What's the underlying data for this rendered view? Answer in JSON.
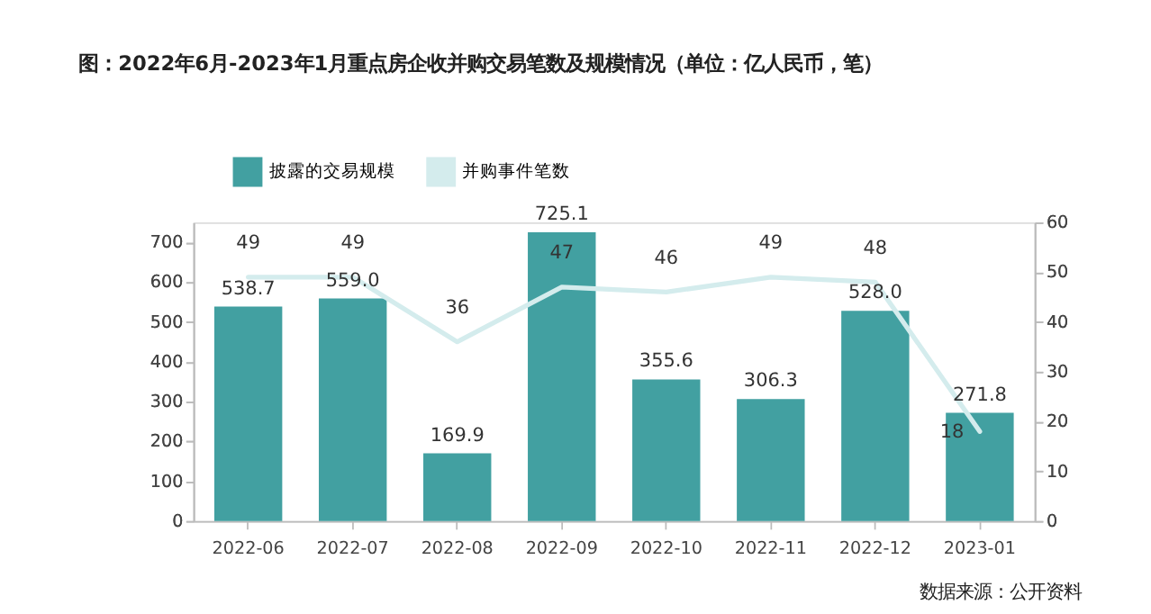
{
  "chart_data": {
    "type": "bar",
    "title": "图：2022年6月-2023年1月重点房企收并购交易笔数及规模情况（单位：亿人民币，笔）",
    "categories": [
      "2022-06",
      "2022-07",
      "2022-08",
      "2022-09",
      "2022-10",
      "2022-11",
      "2022-12",
      "2023-01"
    ],
    "series": [
      {
        "name": "披露的交易规模",
        "color": "#42a0a1",
        "values": [
          538.7,
          559.0,
          169.9,
          725.1,
          355.6,
          306.3,
          528.0,
          271.8
        ],
        "value_labels": [
          "538.7",
          "559.0",
          "169.9",
          "725.1",
          "355.6",
          "306.3",
          "528.0",
          "271.8"
        ]
      },
      {
        "name": "并购事件笔数",
        "type": "line",
        "axis": "y2",
        "color": "#d4eced",
        "values": [
          49,
          49,
          36,
          47,
          46,
          49,
          48,
          18
        ],
        "value_labels": [
          "49",
          "49",
          "36",
          "47",
          "46",
          "49",
          "48",
          "18"
        ]
      }
    ],
    "ylim": [
      0,
      750
    ],
    "yticks": [
      0,
      100,
      200,
      300,
      400,
      500,
      600,
      700
    ],
    "y2lim": [
      0,
      60
    ],
    "y2ticks": [
      0,
      10,
      20,
      30,
      40,
      50,
      60
    ],
    "legend": "top left",
    "grid": false,
    "annotations": [
      "数据来源：公开资料"
    ]
  }
}
